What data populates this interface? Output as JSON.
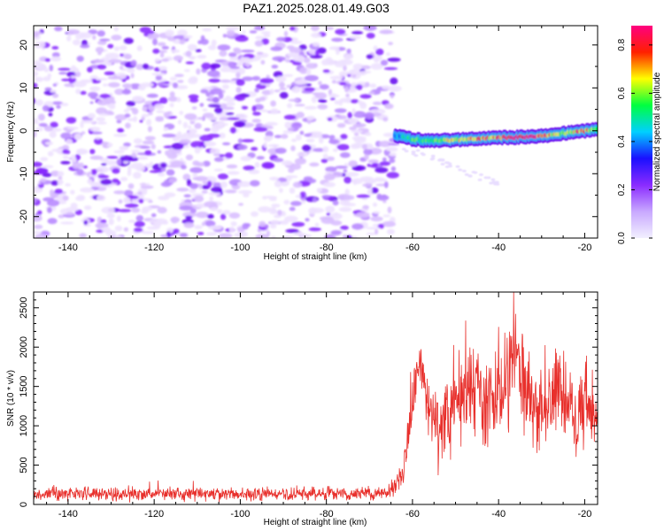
{
  "title": "PAZ1.2025.028.01.49.G03",
  "chart_data": [
    {
      "type": "heatmap",
      "xlabel": "Height of straight line (km)",
      "ylabel": "Frequency (Hz)",
      "xlim": [
        -148,
        -17
      ],
      "ylim": [
        -25,
        24.5
      ],
      "xticks": [
        -140,
        -120,
        -100,
        -80,
        -60,
        -40,
        -20
      ],
      "yticks": [
        -20,
        -10,
        0,
        10,
        20
      ],
      "colorbar": {
        "label": "Normalized spectral amplitude",
        "range": [
          0,
          0.88
        ],
        "ticks": [
          "0.0",
          "0.2",
          "0.4",
          "0.6",
          "0.8"
        ],
        "colors": [
          "#f2f0ff",
          "#c8a8ff",
          "#8a2bff",
          "#1a10ff",
          "#00d0ff",
          "#00ff40",
          "#ffff00",
          "#ff2000",
          "#ff0080"
        ]
      },
      "noise_region": {
        "x_range": [
          -148,
          -64
        ],
        "freq_range": [
          -25,
          24
        ],
        "amplitude_range": [
          0,
          0.15
        ]
      },
      "signal_track": {
        "x": [
          -64,
          -60,
          -56,
          -52,
          -48,
          -44,
          -40,
          -36,
          -32,
          -28,
          -24,
          -20,
          -17
        ],
        "freq": [
          -1.0,
          -2.0,
          -2.3,
          -2.2,
          -2.0,
          -1.8,
          -1.6,
          -1.5,
          -1.4,
          -1.0,
          -0.5,
          0.0,
          0.3
        ],
        "amplitude": [
          0.4,
          0.55,
          0.6,
          0.62,
          0.7,
          0.72,
          0.75,
          0.85,
          0.86,
          0.7,
          0.65,
          0.75,
          0.6
        ]
      }
    },
    {
      "type": "line",
      "xlabel": "Height of straight line (km)",
      "ylabel": "SNR (10 * v/v)",
      "xlim": [
        -148,
        -17
      ],
      "ylim": [
        0,
        2700
      ],
      "xticks": [
        -140,
        -120,
        -100,
        -80,
        -60,
        -40,
        -20
      ],
      "yticks": [
        0,
        500,
        1000,
        1500,
        2000,
        2500
      ],
      "color": "#e8302c",
      "envelope": {
        "x": [
          -148,
          -140,
          -120,
          -100,
          -80,
          -66,
          -64,
          -62,
          -60,
          -59,
          -58,
          -56,
          -54,
          -52,
          -50,
          -48,
          -46,
          -44,
          -42,
          -40,
          -38,
          -36,
          -34,
          -32,
          -30,
          -28,
          -26,
          -24,
          -22,
          -20,
          -18,
          -17
        ],
        "mean": [
          130,
          130,
          135,
          130,
          135,
          140,
          250,
          420,
          1300,
          1700,
          1800,
          1200,
          1000,
          1150,
          1300,
          1400,
          1450,
          1350,
          1250,
          1400,
          1600,
          1900,
          1500,
          1300,
          1200,
          1250,
          1500,
          1350,
          1000,
          1250,
          1100,
          1000
        ],
        "spread": [
          90,
          90,
          90,
          90,
          90,
          90,
          150,
          200,
          350,
          300,
          300,
          500,
          550,
          550,
          600,
          650,
          700,
          700,
          650,
          700,
          700,
          750,
          700,
          650,
          600,
          600,
          650,
          650,
          600,
          550,
          550,
          450
        ]
      }
    }
  ]
}
